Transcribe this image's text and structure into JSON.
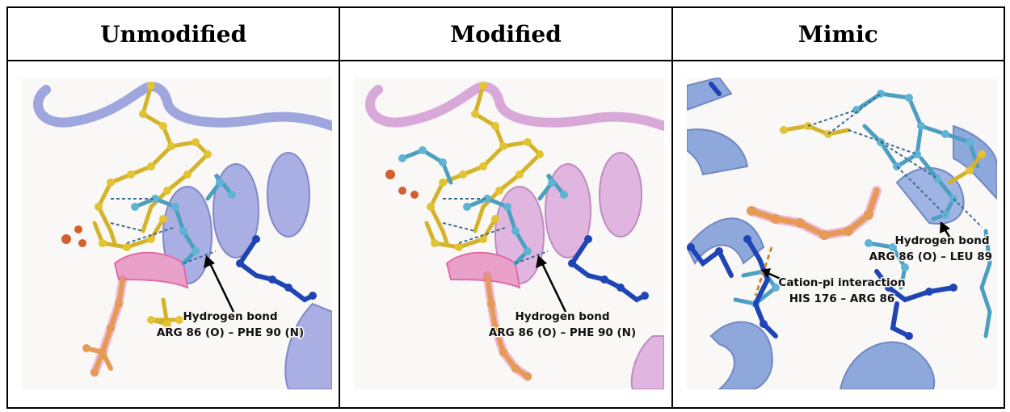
{
  "columns": [
    {
      "title": "Unmodified",
      "annotations": [
        {
          "line1": "Hydrogen bond",
          "line2": "ARG 86 (O) – PHE 90 (N)"
        }
      ]
    },
    {
      "title": "Modified",
      "annotations": [
        {
          "line1": "Hydrogen bond",
          "line2": "ARG 86 (O) – PHE 90 (N)"
        }
      ]
    },
    {
      "title": "Mimic",
      "annotations": [
        {
          "line1": "Hydrogen bond",
          "line2": "ARG 86 (O) – LEU 89 (N)"
        },
        {
          "line1": "Cation-pi interaction",
          "line2": "HIS 176 – ARG 86"
        }
      ]
    }
  ],
  "colors": {
    "ribbon_unmodified": "#9fa6de",
    "ribbon_modified": "#d8a9d8",
    "ribbon_mimic": "#8fa8dc",
    "residue_yellow": "#e2c332",
    "residue_light_blue": "#5fb3d3",
    "residue_dark_blue": "#1f45b5",
    "residue_orange": "#e59a55",
    "highlight_pink": "#e36aa6",
    "hbond_dash": "#3a6e8f",
    "cation_pi_dash": "#d9852c"
  }
}
